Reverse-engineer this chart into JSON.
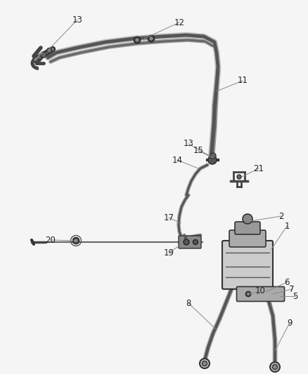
{
  "bg_color": "#f5f5f5",
  "line_color": "#4a4a4a",
  "dark_color": "#2a2a2a",
  "label_color": "#222222",
  "hose_color": "#5a5a5a",
  "hose_outer": "#b0b0b0",
  "label_fontsize": 8.5,
  "leader_color": "#888888",
  "figsize": [
    4.38,
    5.33
  ],
  "dpi": 100
}
